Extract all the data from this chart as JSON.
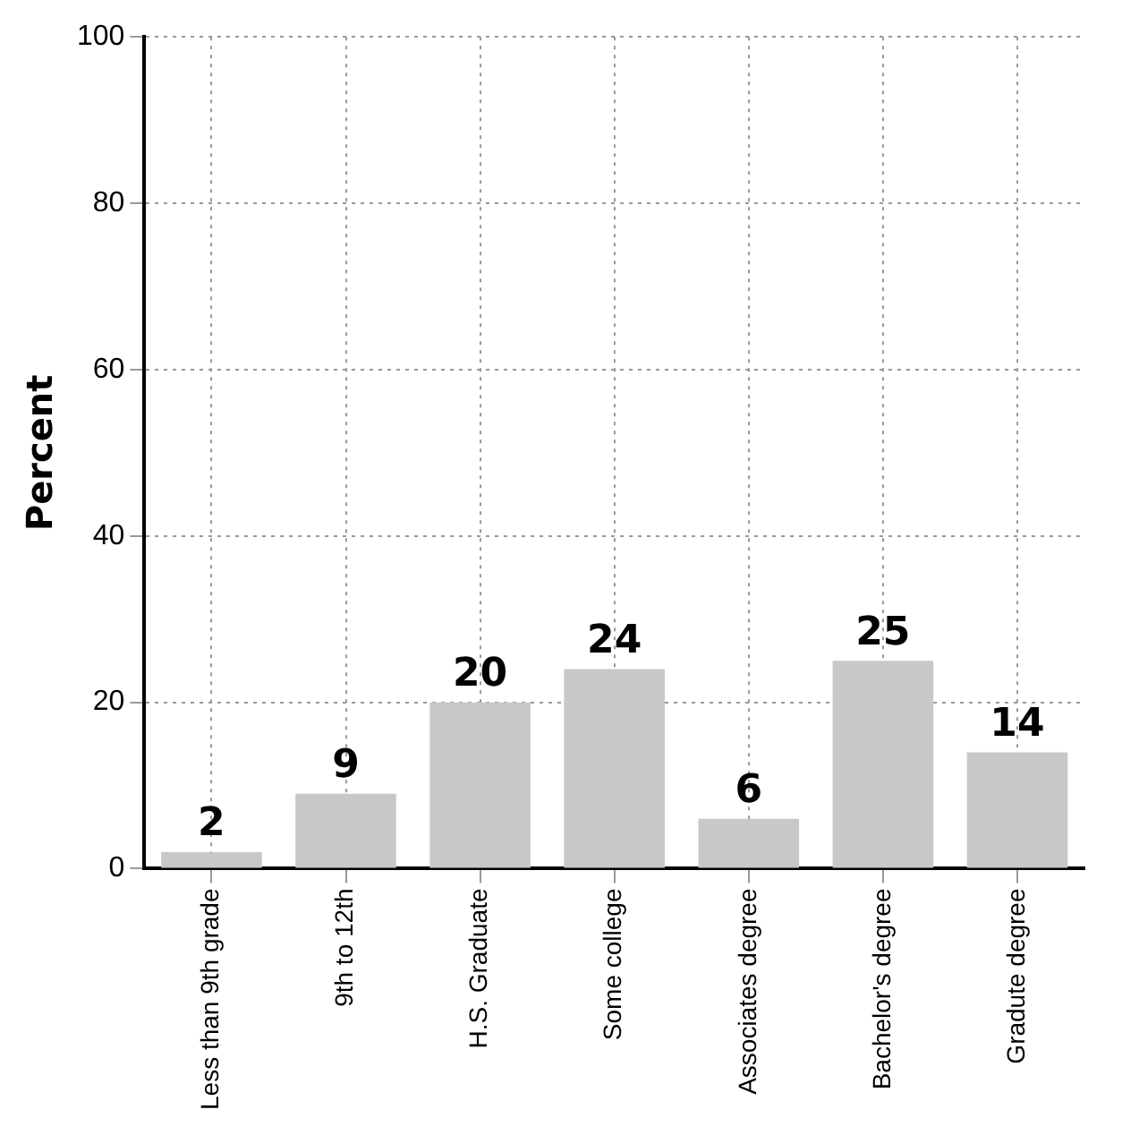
{
  "chart_data": {
    "type": "bar",
    "ylabel": "Percent",
    "categories": [
      "Less than 9th grade",
      "9th to 12th",
      "H.S. Graduate",
      "Some college",
      "Associates degree",
      "Bachelor's degree",
      "Gradute degree"
    ],
    "values": [
      2,
      9,
      20,
      24,
      6,
      25,
      14
    ],
    "color": "#c8c8c8",
    "ylim": [
      0,
      100
    ],
    "yticks": [
      0,
      20,
      40,
      60,
      80,
      100
    ],
    "grid": true,
    "data_labels": true
  }
}
